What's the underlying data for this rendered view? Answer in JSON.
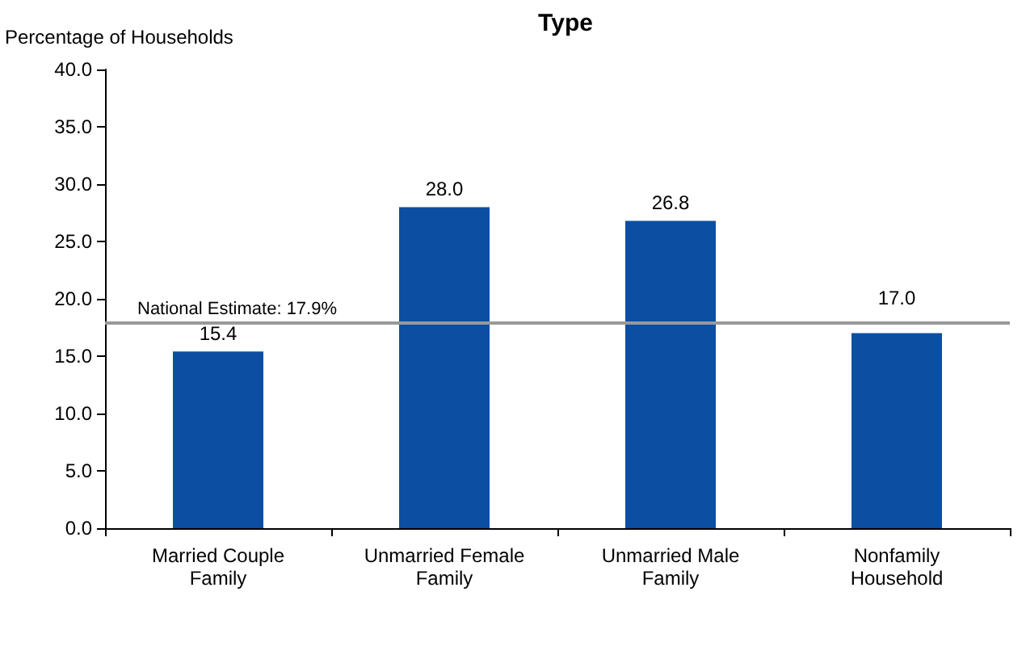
{
  "chart_data": {
    "type": "bar",
    "title": "Type",
    "ylabel": "Percentage of Households",
    "categories": [
      "Married Couple\nFamily",
      "Unmarried Female\nFamily",
      "Unmarried Male\nFamily",
      "Nonfamily\nHousehold"
    ],
    "values": [
      15.4,
      28.0,
      26.8,
      17.0
    ],
    "value_labels": [
      "15.4",
      "28.0",
      "26.8",
      "17.0"
    ],
    "color": "#0b4ea2",
    "ylim": [
      0,
      40
    ],
    "yticks": [
      {
        "value": 0,
        "label": "0.0"
      },
      {
        "value": 5,
        "label": "5.0"
      },
      {
        "value": 10,
        "label": "10.0"
      },
      {
        "value": 15,
        "label": "15.0"
      },
      {
        "value": 20,
        "label": "20.0"
      },
      {
        "value": 25,
        "label": "25.0"
      },
      {
        "value": 30,
        "label": "30.0"
      },
      {
        "value": 35,
        "label": "35.0"
      },
      {
        "value": 40,
        "label": "40.0"
      }
    ],
    "ref_lines": [
      {
        "axis": "y",
        "value": 17.9,
        "label": "National Estimate: 17.9%",
        "color": "#999999"
      }
    ],
    "grid": false
  }
}
